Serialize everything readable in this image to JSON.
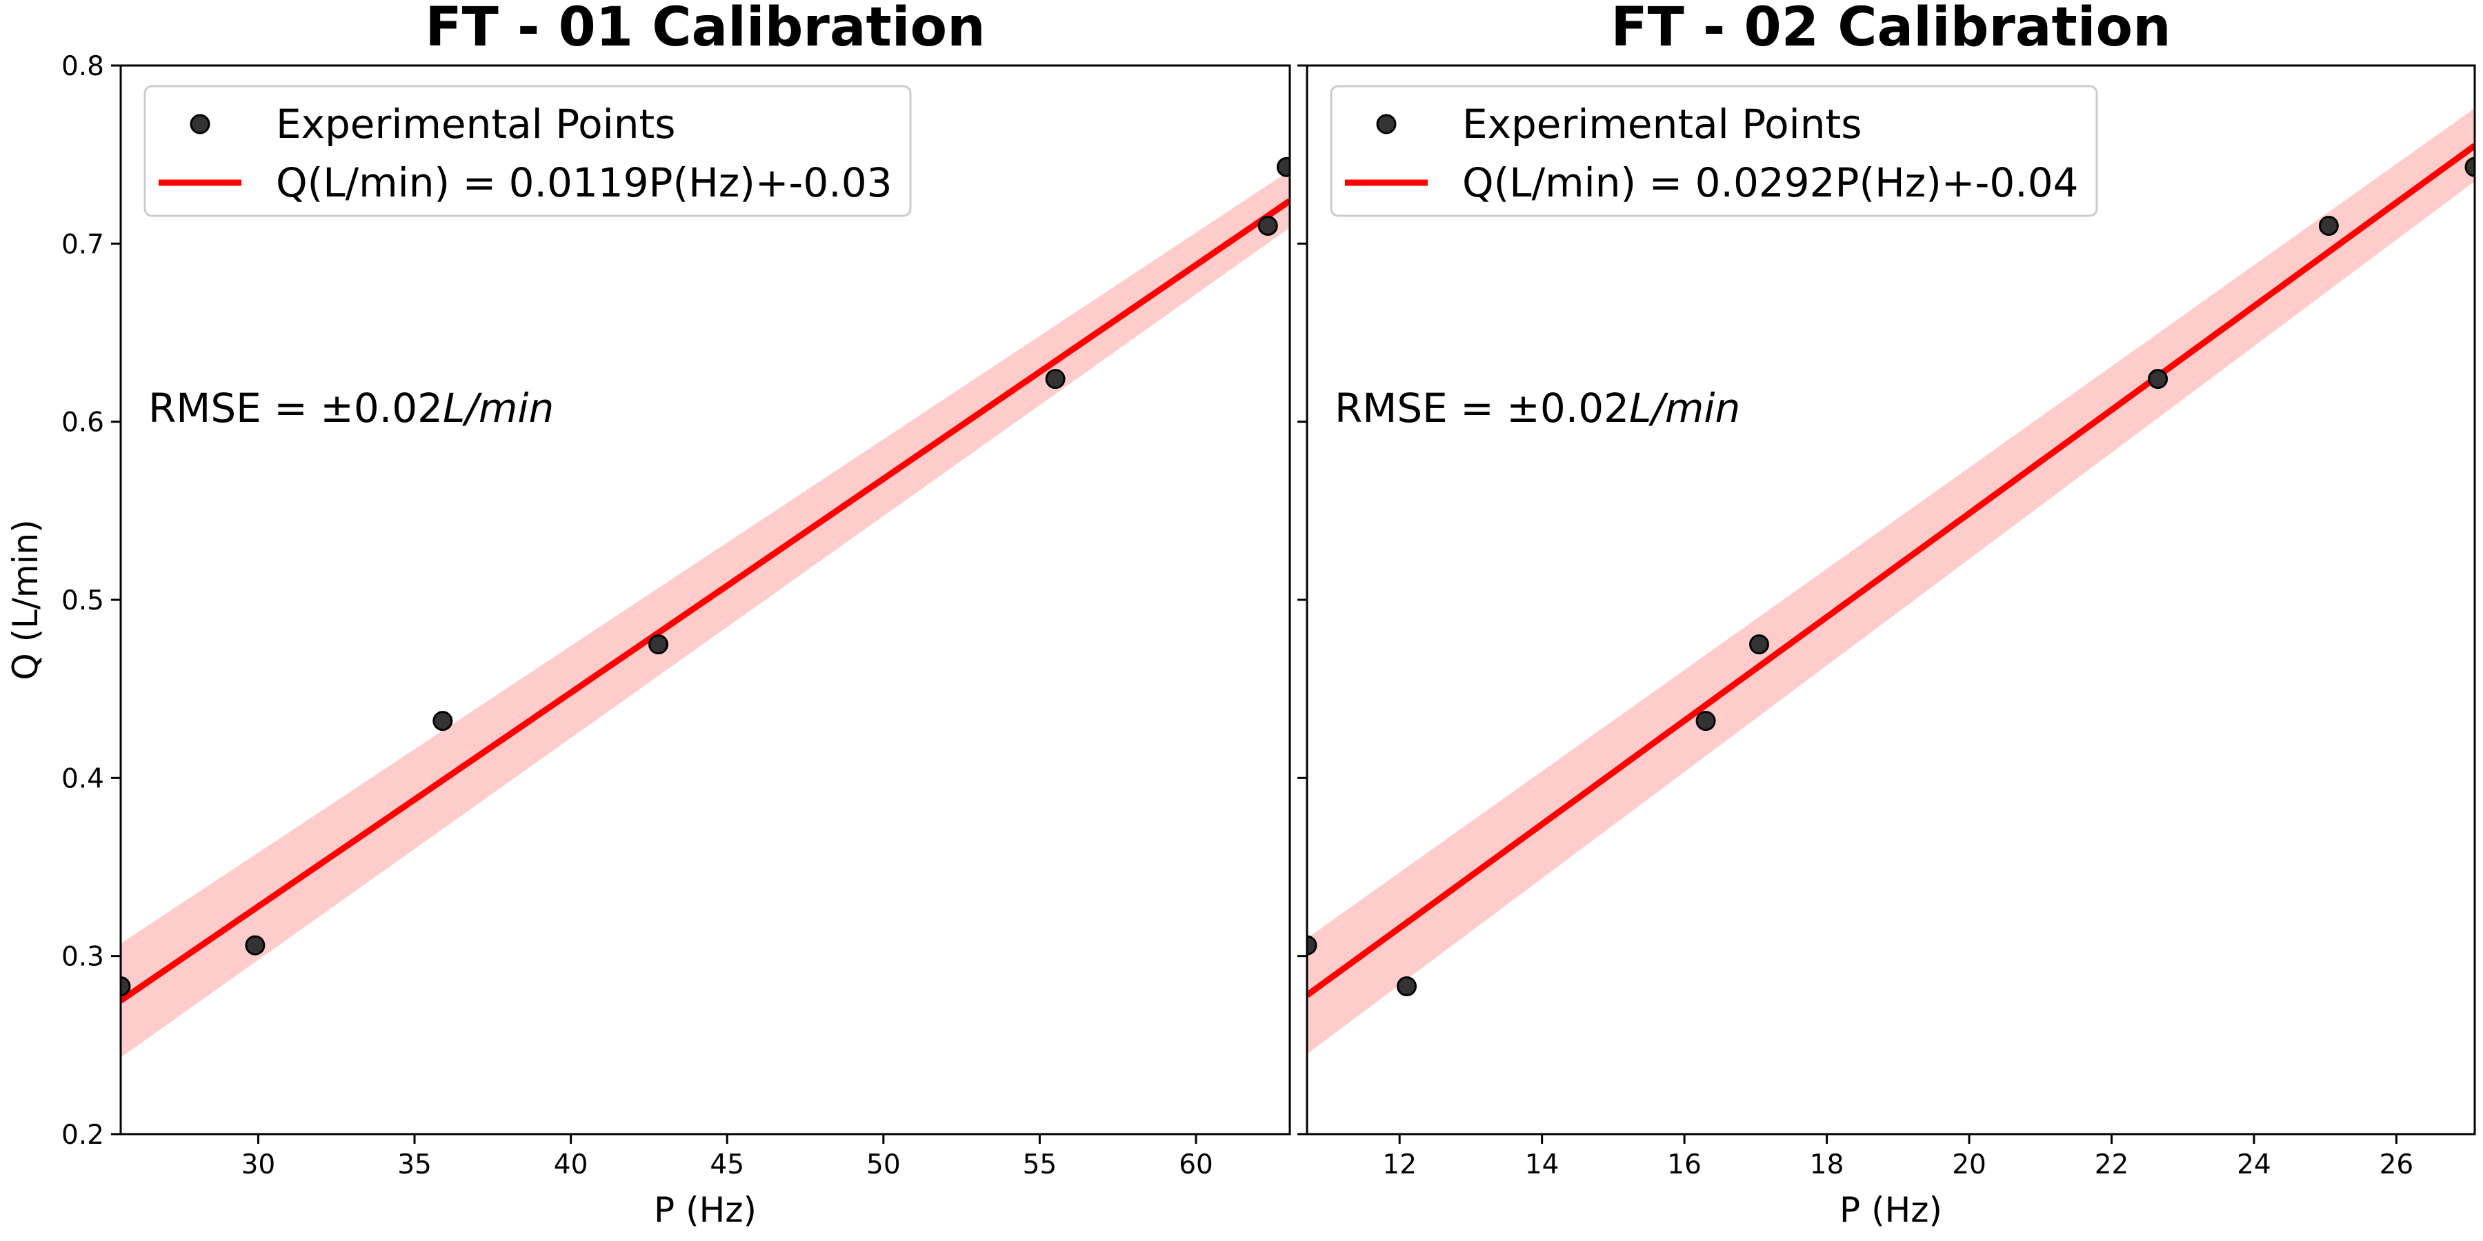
{
  "chart_data": [
    {
      "type": "scatter",
      "title": "FT - 01 Calibration",
      "xlabel": "P (Hz)",
      "ylabel": "Q (L/min)",
      "xlim": [
        25.6,
        63.0
      ],
      "ylim": [
        0.2,
        0.8
      ],
      "xticks": [
        "30",
        "35",
        "40",
        "45",
        "50",
        "55",
        "60"
      ],
      "yticks": [
        "0.2",
        "0.3",
        "0.4",
        "0.5",
        "0.6",
        "0.7",
        "0.8"
      ],
      "grid": false,
      "legend_position": "upper-left",
      "annotation_prefix": "RMSE = ±0.02",
      "annotation_unit": "L/min",
      "series": [
        {
          "name": "Experimental Points",
          "kind": "scatter",
          "color": "#333333",
          "x": [
            25.6,
            29.9,
            35.9,
            42.8,
            55.5,
            62.3,
            62.9
          ],
          "y": [
            0.283,
            0.306,
            0.432,
            0.475,
            0.624,
            0.71,
            0.743
          ]
        },
        {
          "name": "Q(L/min) = 0.0119P(Hz)+-0.03",
          "kind": "line",
          "color": "#ff0000",
          "band_color": "#ffcccc",
          "x": [
            25.6,
            63.0
          ],
          "y": [
            0.275,
            0.724
          ],
          "band_lower": [
            0.243,
            0.709
          ],
          "band_upper": [
            0.307,
            0.741
          ]
        }
      ]
    },
    {
      "type": "scatter",
      "title": "FT - 02 Calibration",
      "xlabel": "P (Hz)",
      "ylabel": "",
      "xlim": [
        10.7,
        27.1
      ],
      "ylim": [
        0.2,
        0.8
      ],
      "xticks": [
        "12",
        "14",
        "16",
        "18",
        "20",
        "22",
        "24",
        "26"
      ],
      "yticks": [
        "0.2",
        "0.3",
        "0.4",
        "0.5",
        "0.6",
        "0.7",
        "0.8"
      ],
      "grid": false,
      "legend_position": "upper-left",
      "annotation_prefix": "RMSE = ±0.02",
      "annotation_unit": "L/min",
      "series": [
        {
          "name": "Experimental Points",
          "kind": "scatter",
          "color": "#333333",
          "x": [
            10.7,
            12.1,
            16.3,
            17.05,
            22.65,
            25.05,
            27.1
          ],
          "y": [
            0.306,
            0.283,
            0.432,
            0.475,
            0.624,
            0.71,
            0.743
          ]
        },
        {
          "name": "Q(L/min) = 0.0292P(Hz)+-0.04",
          "kind": "line",
          "color": "#ff0000",
          "band_color": "#ffcccc",
          "x": [
            10.7,
            27.1
          ],
          "y": [
            0.278,
            0.755
          ],
          "band_lower": [
            0.245,
            0.735
          ],
          "band_upper": [
            0.31,
            0.776
          ]
        }
      ]
    }
  ]
}
